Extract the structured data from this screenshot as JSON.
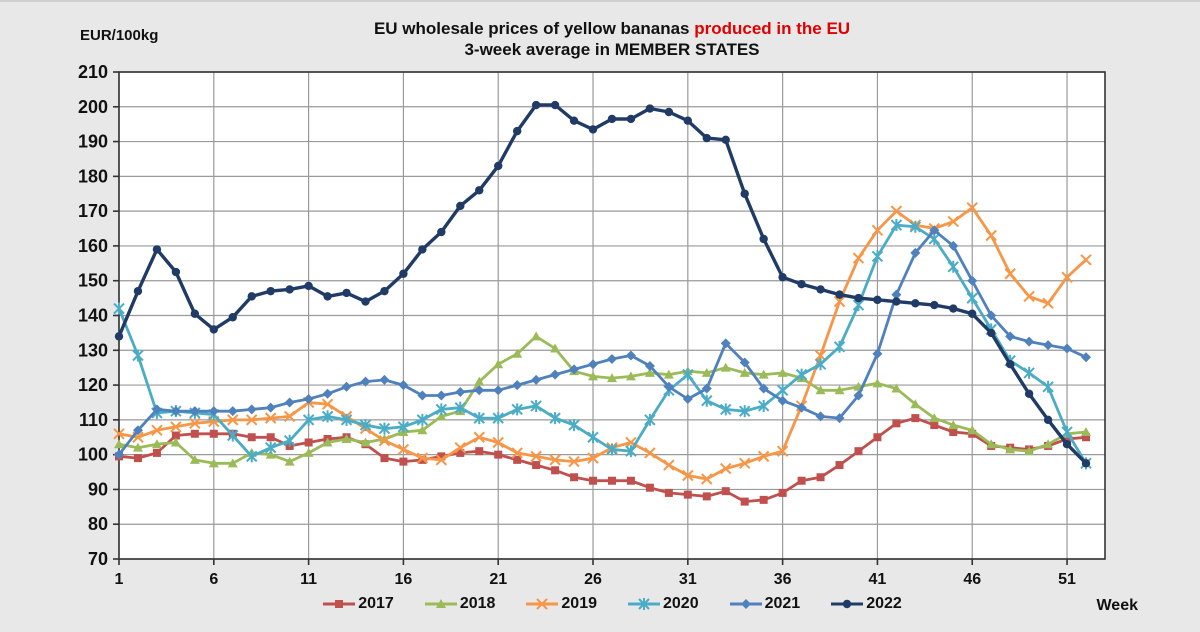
{
  "page": {
    "title_line1_black": "EU wholesale prices of yellow bananas ",
    "title_line1_red": "produced in the EU",
    "title_line2": "3-week average in MEMBER STATES",
    "y_axis_unit": "EUR/100kg",
    "x_axis_label": "Week",
    "background_color": "#e8e8e8"
  },
  "chart_data": {
    "type": "line",
    "title": "EU wholesale prices of yellow bananas produced in the EU — 3-week average in MEMBER STATES",
    "xlabel": "Week",
    "ylabel": "EUR/100kg",
    "x_range": [
      1,
      52
    ],
    "xticks": [
      1,
      6,
      11,
      16,
      21,
      26,
      31,
      36,
      41,
      46,
      51
    ],
    "ylim": [
      70,
      210
    ],
    "ytick_step": 10,
    "grid": true,
    "legend_position": "bottom",
    "grid_color": "#9a9a9a",
    "axis_color": "#333333",
    "plot_background": "#ffffff",
    "series": [
      {
        "name": "2017",
        "color": "#c0504d",
        "marker": "square",
        "values": [
          99.5,
          99,
          100.5,
          105.5,
          106,
          106,
          106,
          105,
          105,
          102.5,
          103.5,
          104.5,
          105,
          103,
          99,
          98,
          98.5,
          99.5,
          100.5,
          101,
          100,
          98.5,
          97,
          95.5,
          93.5,
          92.5,
          92.5,
          92.5,
          90.5,
          89,
          88.5,
          88,
          89.5,
          86.5,
          87,
          89,
          92.5,
          93.5,
          97,
          101,
          105,
          109,
          110.5,
          108.5,
          106.5,
          106,
          102.5,
          102,
          101.5,
          102.5,
          104.5,
          105
        ]
      },
      {
        "name": "2018",
        "color": "#9bbb59",
        "marker": "triangle",
        "values": [
          103,
          102,
          103,
          103.5,
          98.5,
          97.5,
          97.5,
          100.5,
          100,
          98,
          100.5,
          103.5,
          104.5,
          103.5,
          104.5,
          106.5,
          107,
          111,
          112.5,
          121,
          126,
          129,
          134,
          130.5,
          124,
          122.5,
          122,
          122.5,
          123.5,
          123,
          124,
          123.5,
          125,
          123.5,
          123,
          123.5,
          122,
          118.5,
          118.5,
          119.5,
          120.5,
          119,
          114.5,
          110.5,
          108.5,
          107,
          103,
          101.5,
          101,
          103,
          106,
          106.5
        ]
      },
      {
        "name": "2019",
        "color": "#f79646",
        "marker": "x",
        "values": [
          106,
          105,
          107,
          108,
          109,
          109.5,
          110,
          110,
          110.5,
          111,
          115,
          114.5,
          111,
          107.5,
          104,
          101.5,
          99,
          98.5,
          102,
          105,
          103.5,
          100.5,
          99.5,
          98.5,
          98,
          99,
          102,
          103.5,
          100.5,
          97,
          94,
          93,
          96,
          97.5,
          99.5,
          101,
          114,
          128.5,
          144,
          156.5,
          164.5,
          170,
          166,
          165,
          167,
          171,
          163,
          152,
          145.5,
          143.5,
          151,
          156
        ]
      },
      {
        "name": "2020",
        "color": "#4bacc6",
        "marker": "asterisk",
        "values": [
          142,
          128.5,
          112,
          112.5,
          112,
          111.5,
          105.5,
          99.5,
          102,
          104,
          110,
          111,
          110,
          108.5,
          107.5,
          108,
          110,
          113,
          113.5,
          110.5,
          110.5,
          113,
          114,
          110.5,
          108.5,
          105,
          101.5,
          101,
          110,
          118.5,
          123,
          115.5,
          113,
          112.5,
          114,
          118.5,
          123,
          126,
          131,
          143,
          157,
          166,
          165.5,
          162,
          154,
          145,
          136,
          127,
          123.5,
          119.5,
          106.5,
          97.5
        ]
      },
      {
        "name": "2021",
        "color": "#4f81bd",
        "marker": "diamond",
        "values": [
          100,
          107,
          113,
          112.5,
          112.5,
          112.5,
          112.5,
          113,
          113.5,
          115,
          116,
          117.5,
          119.5,
          121,
          121.5,
          120,
          117,
          117,
          118,
          118.5,
          118.5,
          120,
          121.5,
          123,
          124.5,
          126,
          127.5,
          128.5,
          125.5,
          119.5,
          116,
          119,
          132,
          126.5,
          119,
          115.5,
          113.5,
          111,
          110.5,
          117,
          129,
          146,
          158,
          164.5,
          160,
          150,
          140,
          134,
          132.5,
          131.5,
          130.5,
          128
        ]
      },
      {
        "name": "2022",
        "color": "#1f3b66",
        "marker": "circle",
        "values": [
          134,
          147,
          159,
          152.5,
          140.5,
          136,
          139.5,
          145.5,
          147,
          147.5,
          148.5,
          145.5,
          146.5,
          144,
          147,
          152,
          159,
          164,
          171.5,
          176,
          183,
          193,
          200.5,
          200.5,
          196,
          193.5,
          196.5,
          196.5,
          199.5,
          198.5,
          196,
          191,
          190.5,
          175,
          162,
          151,
          149,
          147.5,
          146,
          145,
          144.5,
          144,
          143.5,
          143,
          142,
          140.5,
          135,
          126,
          117.5,
          110,
          103,
          97.5
        ]
      }
    ]
  }
}
